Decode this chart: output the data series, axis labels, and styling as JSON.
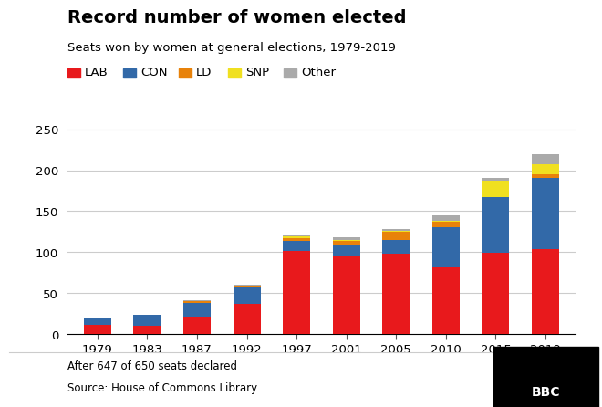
{
  "years": [
    "1979",
    "1983",
    "1987",
    "1992",
    "1997",
    "2001",
    "2005",
    "2010",
    "2015",
    "2019"
  ],
  "LAB": [
    11,
    10,
    21,
    37,
    101,
    95,
    98,
    81,
    99,
    104
  ],
  "CON": [
    8,
    13,
    17,
    20,
    13,
    14,
    17,
    49,
    68,
    87
  ],
  "LD": [
    0,
    0,
    2,
    2,
    3,
    5,
    10,
    7,
    0,
    4
  ],
  "SNP": [
    0,
    0,
    0,
    0,
    2,
    1,
    1,
    1,
    20,
    12
  ],
  "Other": [
    0,
    0,
    1,
    1,
    2,
    3,
    2,
    7,
    4,
    13
  ],
  "colors": {
    "LAB": "#e8191c",
    "CON": "#3269a8",
    "LD": "#e8820a",
    "SNP": "#f0e020",
    "Other": "#aaaaaa"
  },
  "title": "Record number of women elected",
  "subtitle": "Seats won by women at general elections, 1979-2019",
  "ylim": [
    0,
    260
  ],
  "yticks": [
    0,
    50,
    100,
    150,
    200,
    250
  ],
  "footnote1": "After 647 of 650 seats declared",
  "footnote2": "Source: House of Commons Library",
  "bbc_logo": "BBC",
  "bg_color": "#ffffff",
  "grid_color": "#cccccc"
}
